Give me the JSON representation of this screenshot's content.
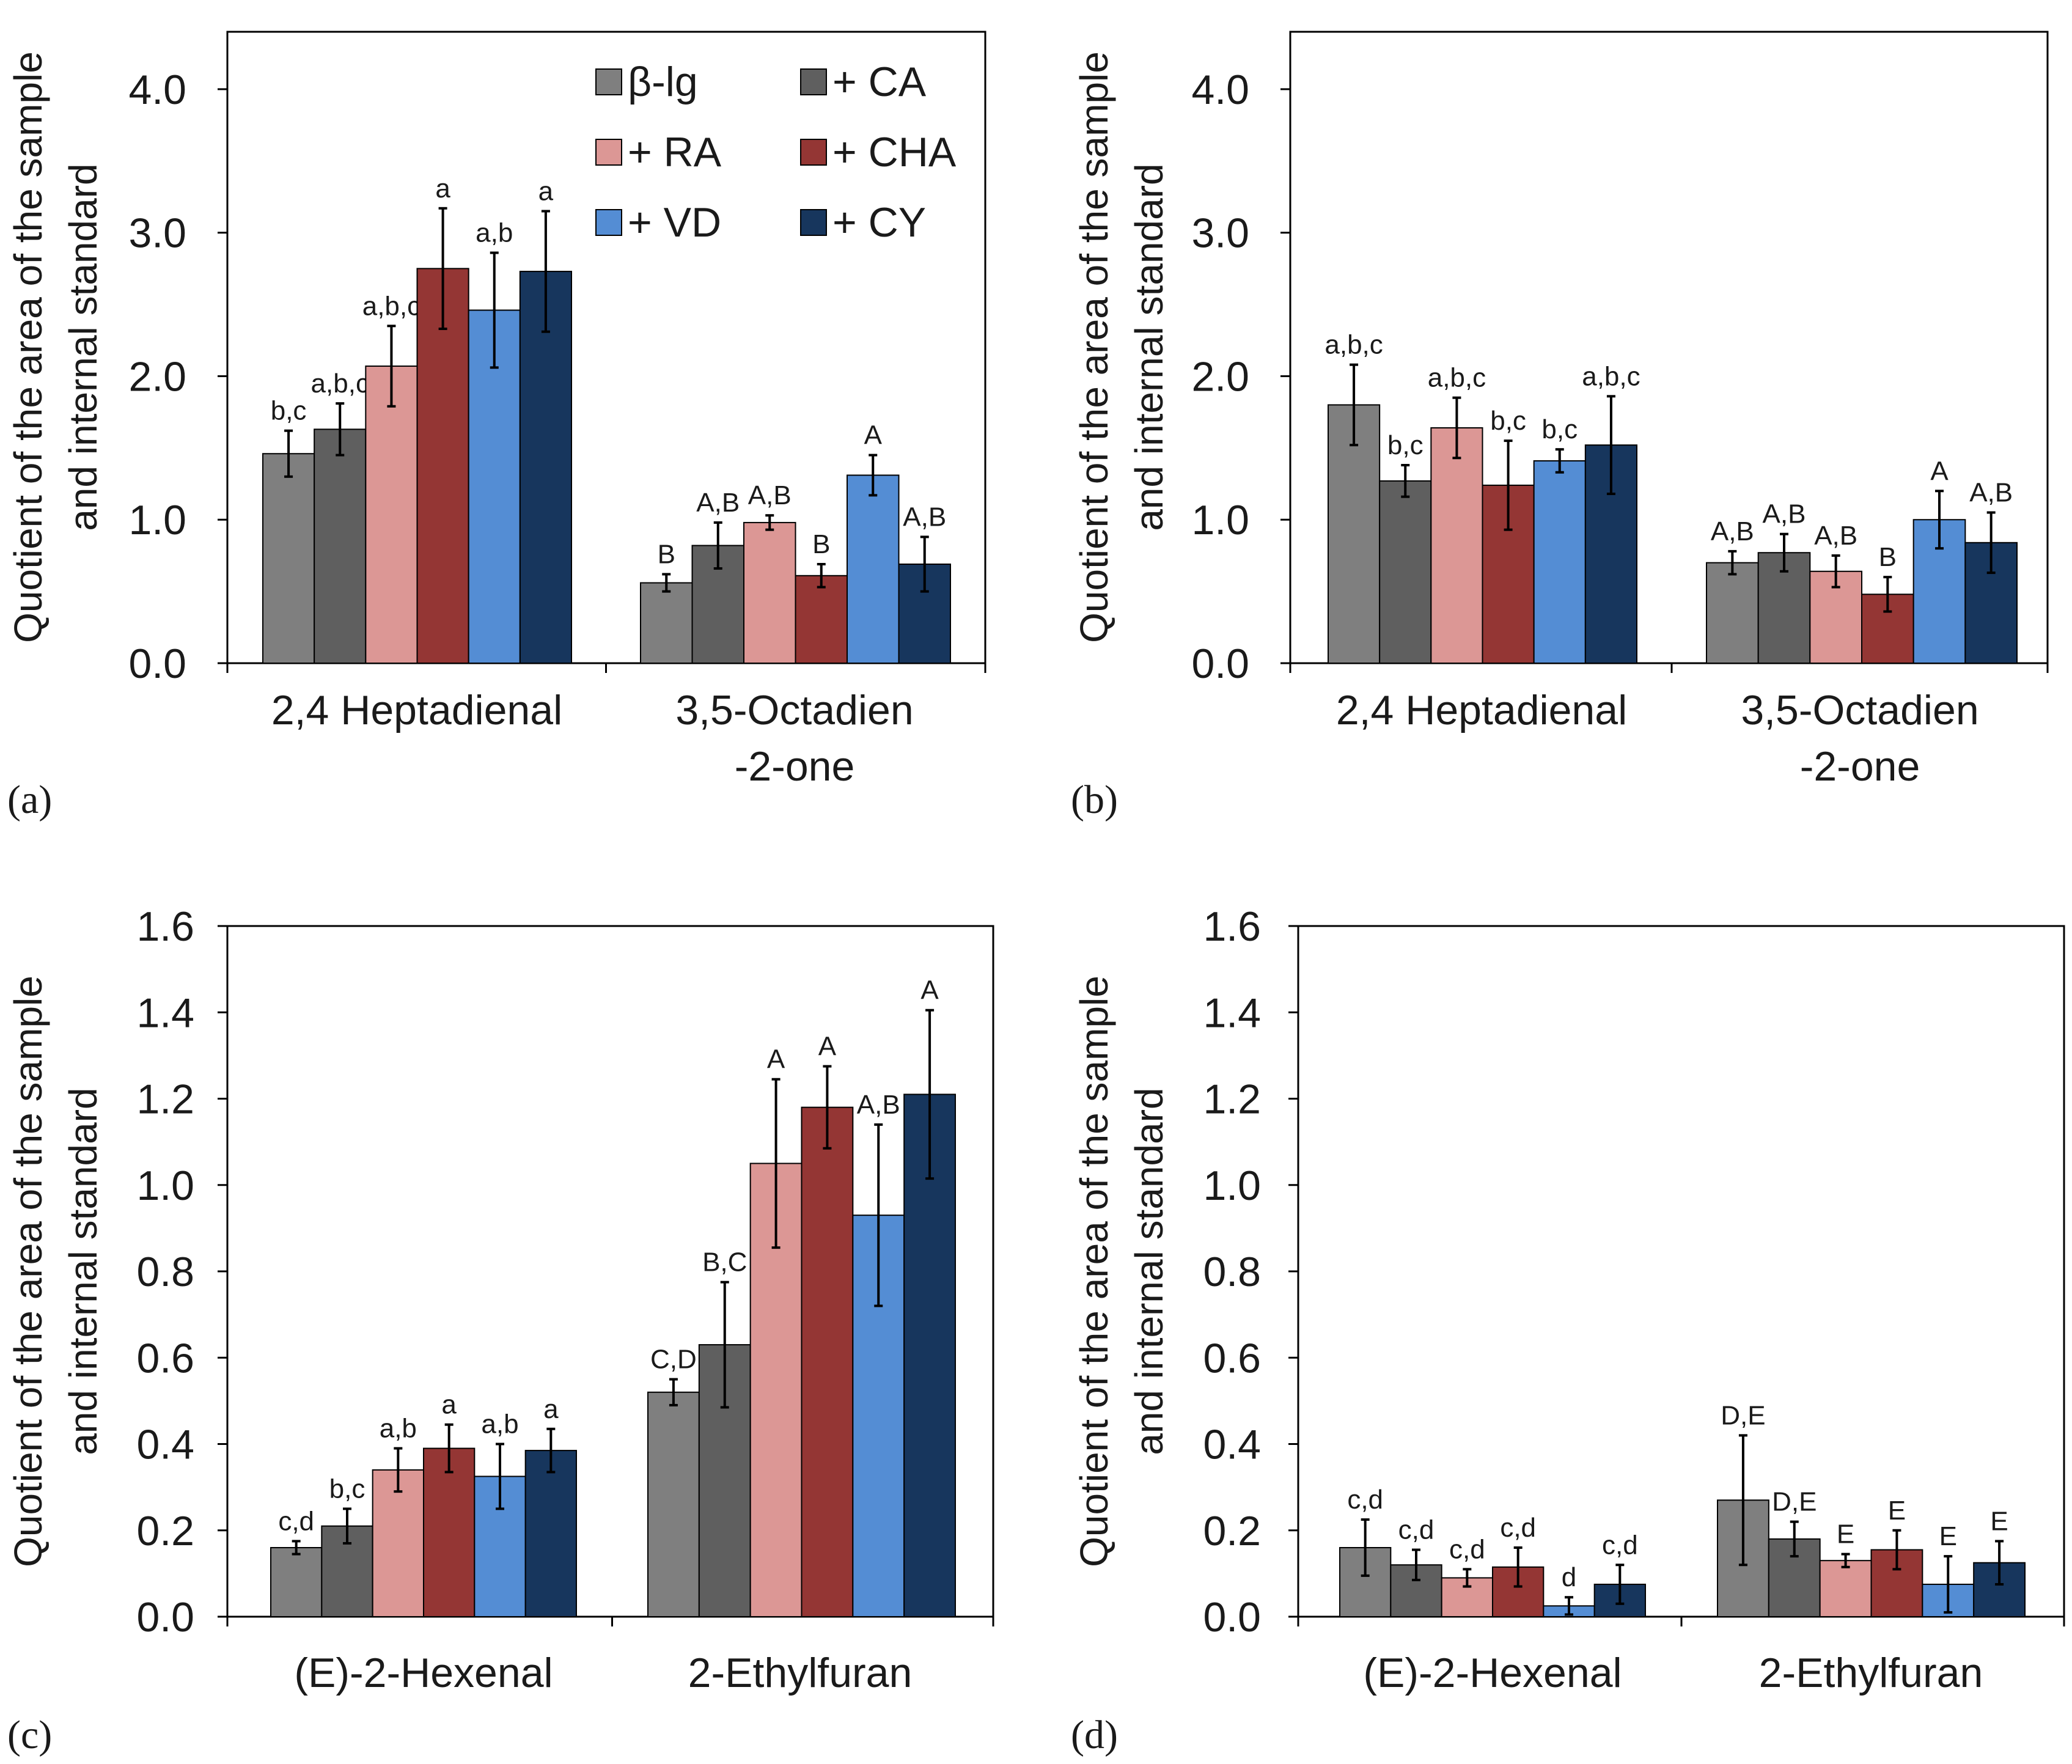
{
  "colors": {
    "b-lg": "#7f7f7f",
    "CA": "#5f5f5f",
    "RA": "#dc9795",
    "CHA": "#943634",
    "VD": "#548dd4",
    "CY": "#17365d"
  },
  "legend": [
    {
      "key": "b-lg",
      "label": "β-lg"
    },
    {
      "key": "CA",
      "label": "+ CA"
    },
    {
      "key": "RA",
      "label": "+ RA"
    },
    {
      "key": "CHA",
      "label": "+ CHA"
    },
    {
      "key": "VD",
      "label": "+ VD"
    },
    {
      "key": "CY",
      "label": "+ CY"
    }
  ],
  "chart_data": [
    {
      "type": "bar",
      "panel_label": "(a)",
      "ylabel": [
        "Quotient of the area of the sample",
        "and internal standard"
      ],
      "ylim": [
        0,
        4.4
      ],
      "yticks": [
        0.0,
        1.0,
        2.0,
        3.0,
        4.0
      ],
      "ytick_labels": [
        "0.0",
        "1.0",
        "2.0",
        "3.0",
        "4.0"
      ],
      "categories": [
        [
          "2,4 Heptadienal"
        ],
        [
          "3,5-Octadien",
          "-2-one"
        ]
      ],
      "legend": true,
      "series": [
        {
          "name": "β-lg",
          "key": "b-lg",
          "values": [
            1.46,
            0.56
          ],
          "errors": [
            0.16,
            0.06
          ],
          "labels": [
            "b,c",
            "B"
          ]
        },
        {
          "name": "+ CA",
          "key": "CA",
          "values": [
            1.63,
            0.82
          ],
          "errors": [
            0.18,
            0.16
          ],
          "labels": [
            "a,b,c",
            "A,B"
          ]
        },
        {
          "name": "+ RA",
          "key": "RA",
          "values": [
            2.07,
            0.98
          ],
          "errors": [
            0.28,
            0.05
          ],
          "labels": [
            "a,b,c",
            "A,B"
          ]
        },
        {
          "name": "+ CHA",
          "key": "CHA",
          "values": [
            2.75,
            0.61
          ],
          "errors": [
            0.42,
            0.08
          ],
          "labels": [
            "a",
            "B"
          ]
        },
        {
          "name": "+ VD",
          "key": "VD",
          "values": [
            2.46,
            1.31
          ],
          "errors": [
            0.4,
            0.14
          ],
          "labels": [
            "a,b",
            "A"
          ]
        },
        {
          "name": "+ CY",
          "key": "CY",
          "values": [
            2.73,
            0.69
          ],
          "errors": [
            0.42,
            0.19
          ],
          "labels": [
            "a",
            "A,B"
          ]
        }
      ]
    },
    {
      "type": "bar",
      "panel_label": "(b)",
      "ylabel": [
        "Quotient of the area of the sample",
        "and internal standard"
      ],
      "ylim": [
        0,
        4.4
      ],
      "yticks": [
        0.0,
        1.0,
        2.0,
        3.0,
        4.0
      ],
      "ytick_labels": [
        "0.0",
        "1.0",
        "2.0",
        "3.0",
        "4.0"
      ],
      "categories": [
        [
          "2,4 Heptadienal"
        ],
        [
          "3,5-Octadien",
          "-2-one"
        ]
      ],
      "legend": false,
      "series": [
        {
          "name": "β-lg",
          "key": "b-lg",
          "values": [
            1.8,
            0.7
          ],
          "errors": [
            0.28,
            0.08
          ],
          "labels": [
            "a,b,c",
            "A,B"
          ]
        },
        {
          "name": "+ CA",
          "key": "CA",
          "values": [
            1.27,
            0.77
          ],
          "errors": [
            0.11,
            0.13
          ],
          "labels": [
            "b,c",
            "A,B"
          ]
        },
        {
          "name": "+ RA",
          "key": "RA",
          "values": [
            1.64,
            0.64
          ],
          "errors": [
            0.21,
            0.11
          ],
          "labels": [
            "a,b,c",
            "A,B"
          ]
        },
        {
          "name": "+ CHA",
          "key": "CHA",
          "values": [
            1.24,
            0.48
          ],
          "errors": [
            0.31,
            0.12
          ],
          "labels": [
            "b,c",
            "B"
          ]
        },
        {
          "name": "+ VD",
          "key": "VD",
          "values": [
            1.41,
            1.0
          ],
          "errors": [
            0.08,
            0.2
          ],
          "labels": [
            "b,c",
            "A"
          ]
        },
        {
          "name": "+ CY",
          "key": "CY",
          "values": [
            1.52,
            0.84
          ],
          "errors": [
            0.34,
            0.21
          ],
          "labels": [
            "a,b,c",
            "A,B"
          ]
        }
      ]
    },
    {
      "type": "bar",
      "panel_label": "(c)",
      "ylabel": [
        "Quotient of the area of the sample",
        "and internal standard"
      ],
      "ylim": [
        0,
        1.6
      ],
      "yticks": [
        0.0,
        0.2,
        0.4,
        0.6,
        0.8,
        1.0,
        1.2,
        1.4,
        1.6
      ],
      "ytick_labels": [
        "0.0",
        "0.2",
        "0.4",
        "0.6",
        "0.8",
        "1.0",
        "1.2",
        "1.4",
        "1.6"
      ],
      "categories": [
        [
          "(E)-2-Hexenal"
        ],
        [
          "2-Ethylfuran"
        ]
      ],
      "legend": false,
      "series": [
        {
          "name": "β-lg",
          "key": "b-lg",
          "values": [
            0.16,
            0.52
          ],
          "errors": [
            0.015,
            0.03
          ],
          "labels": [
            "c,d",
            "C,D"
          ]
        },
        {
          "name": "+ CA",
          "key": "CA",
          "values": [
            0.21,
            0.63
          ],
          "errors": [
            0.04,
            0.145
          ],
          "labels": [
            "b,c",
            "B,C"
          ]
        },
        {
          "name": "+ RA",
          "key": "RA",
          "values": [
            0.34,
            1.05
          ],
          "errors": [
            0.05,
            0.195
          ],
          "labels": [
            "a,b",
            "A"
          ]
        },
        {
          "name": "+ CHA",
          "key": "CHA",
          "values": [
            0.39,
            1.18
          ],
          "errors": [
            0.055,
            0.095
          ],
          "labels": [
            "a",
            "A"
          ]
        },
        {
          "name": "+ VD",
          "key": "VD",
          "values": [
            0.325,
            0.93
          ],
          "errors": [
            0.075,
            0.21
          ],
          "labels": [
            "a,b",
            "A,B"
          ]
        },
        {
          "name": "+ CY",
          "key": "CY",
          "values": [
            0.385,
            1.21
          ],
          "errors": [
            0.05,
            0.195
          ],
          "labels": [
            "a",
            "A"
          ]
        }
      ]
    },
    {
      "type": "bar",
      "panel_label": "(d)",
      "ylabel": [
        "Quotient of the area of the sample",
        "and internal standard"
      ],
      "ylim": [
        0,
        1.6
      ],
      "yticks": [
        0.0,
        0.2,
        0.4,
        0.6,
        0.8,
        1.0,
        1.2,
        1.4,
        1.6
      ],
      "ytick_labels": [
        "0.0",
        "0.2",
        "0.4",
        "0.6",
        "0.8",
        "1.0",
        "1.2",
        "1.4",
        "1.6"
      ],
      "categories": [
        [
          "(E)-2-Hexenal"
        ],
        [
          "2-Ethylfuran"
        ]
      ],
      "legend": false,
      "series": [
        {
          "name": "β-lg",
          "key": "b-lg",
          "values": [
            0.16,
            0.27
          ],
          "errors": [
            0.065,
            0.15
          ],
          "labels": [
            "c,d",
            "D,E"
          ]
        },
        {
          "name": "+ CA",
          "key": "CA",
          "values": [
            0.12,
            0.18
          ],
          "errors": [
            0.035,
            0.04
          ],
          "labels": [
            "c,d",
            "D,E"
          ]
        },
        {
          "name": "+ RA",
          "key": "RA",
          "values": [
            0.09,
            0.13
          ],
          "errors": [
            0.02,
            0.015
          ],
          "labels": [
            "c,d",
            "E"
          ]
        },
        {
          "name": "+ CHA",
          "key": "CHA",
          "values": [
            0.115,
            0.155
          ],
          "errors": [
            0.045,
            0.045
          ],
          "labels": [
            "c,d",
            "E"
          ]
        },
        {
          "name": "+ VD",
          "key": "VD",
          "values": [
            0.025,
            0.075
          ],
          "errors": [
            0.02,
            0.065
          ],
          "labels": [
            "d",
            "E"
          ]
        },
        {
          "name": "+ CY",
          "key": "CY",
          "values": [
            0.075,
            0.125
          ],
          "errors": [
            0.045,
            0.05
          ],
          "labels": [
            "c,d",
            "E"
          ]
        }
      ]
    }
  ]
}
